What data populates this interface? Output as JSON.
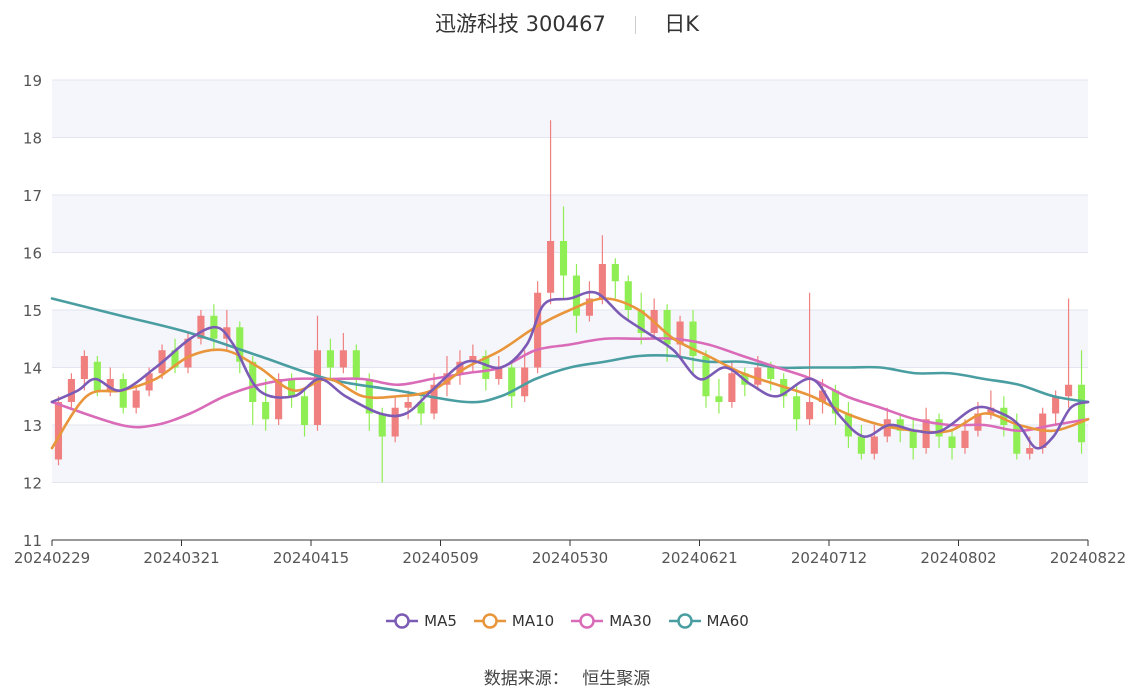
{
  "header": {
    "stock": "迅游科技 300467",
    "period": "日K"
  },
  "footer": {
    "label": "数据来源：",
    "source": "恒生聚源"
  },
  "chart_data": {
    "type": "candlestick",
    "ylim": [
      11,
      19
    ],
    "yticks": [
      11,
      12,
      13,
      14,
      15,
      16,
      17,
      18,
      19
    ],
    "x_tick_labels": [
      "20240229",
      "20240321",
      "20240415",
      "20240509",
      "20240530",
      "20240621",
      "20240712",
      "20240802",
      "20240822"
    ],
    "up_color": "#f08080",
    "down_color": "#90ee55",
    "legend": [
      {
        "name": "MA5",
        "color": "#7b5bb5"
      },
      {
        "name": "MA10",
        "color": "#e8953b"
      },
      {
        "name": "MA30",
        "color": "#d96bb8"
      },
      {
        "name": "MA60",
        "color": "#4a9ea1"
      }
    ],
    "ma": {
      "MA5": [
        [
          0,
          13.4
        ],
        [
          3,
          13.6
        ],
        [
          5,
          13.8
        ],
        [
          8,
          13.6
        ],
        [
          12,
          14.0
        ],
        [
          16,
          14.5
        ],
        [
          19,
          14.7
        ],
        [
          21,
          14.4
        ],
        [
          24,
          13.6
        ],
        [
          28,
          13.5
        ],
        [
          31,
          13.8
        ],
        [
          34,
          13.5
        ],
        [
          38,
          13.2
        ],
        [
          41,
          13.2
        ],
        [
          44,
          13.6
        ],
        [
          48,
          14.1
        ],
        [
          52,
          14.0
        ],
        [
          55,
          14.4
        ],
        [
          57,
          15.1
        ],
        [
          60,
          15.2
        ],
        [
          63,
          15.3
        ],
        [
          66,
          14.9
        ],
        [
          69,
          14.6
        ],
        [
          72,
          14.3
        ],
        [
          75,
          13.8
        ],
        [
          78,
          14.0
        ],
        [
          81,
          13.7
        ],
        [
          84,
          13.5
        ],
        [
          88,
          13.8
        ],
        [
          91,
          13.2
        ],
        [
          94,
          12.8
        ],
        [
          97,
          13.0
        ],
        [
          100,
          12.9
        ],
        [
          103,
          12.9
        ],
        [
          107,
          13.3
        ],
        [
          110,
          13.2
        ],
        [
          112,
          13.0
        ],
        [
          114,
          12.6
        ],
        [
          116,
          12.8
        ],
        [
          118,
          13.3
        ],
        [
          120,
          13.4
        ]
      ],
      "MA10": [
        [
          0,
          12.6
        ],
        [
          4,
          13.5
        ],
        [
          8,
          13.6
        ],
        [
          12,
          13.8
        ],
        [
          16,
          14.2
        ],
        [
          20,
          14.3
        ],
        [
          24,
          14.0
        ],
        [
          28,
          13.6
        ],
        [
          32,
          13.8
        ],
        [
          36,
          13.5
        ],
        [
          40,
          13.5
        ],
        [
          44,
          13.6
        ],
        [
          48,
          14.0
        ],
        [
          52,
          14.3
        ],
        [
          56,
          14.7
        ],
        [
          60,
          15.0
        ],
        [
          64,
          15.2
        ],
        [
          68,
          15.0
        ],
        [
          72,
          14.5
        ],
        [
          76,
          14.2
        ],
        [
          80,
          13.9
        ],
        [
          84,
          13.7
        ],
        [
          88,
          13.5
        ],
        [
          92,
          13.2
        ],
        [
          96,
          13.0
        ],
        [
          100,
          12.9
        ],
        [
          104,
          12.9
        ],
        [
          108,
          13.2
        ],
        [
          112,
          13.0
        ],
        [
          116,
          12.9
        ],
        [
          120,
          13.1
        ]
      ],
      "MA30": [
        [
          0,
          13.4
        ],
        [
          8,
          13.0
        ],
        [
          12,
          13.0
        ],
        [
          16,
          13.2
        ],
        [
          20,
          13.5
        ],
        [
          24,
          13.7
        ],
        [
          28,
          13.8
        ],
        [
          32,
          13.8
        ],
        [
          36,
          13.8
        ],
        [
          40,
          13.7
        ],
        [
          44,
          13.8
        ],
        [
          48,
          13.9
        ],
        [
          52,
          14.0
        ],
        [
          56,
          14.3
        ],
        [
          60,
          14.4
        ],
        [
          64,
          14.5
        ],
        [
          68,
          14.5
        ],
        [
          72,
          14.5
        ],
        [
          76,
          14.4
        ],
        [
          80,
          14.2
        ],
        [
          84,
          14.0
        ],
        [
          88,
          13.8
        ],
        [
          92,
          13.5
        ],
        [
          96,
          13.3
        ],
        [
          100,
          13.1
        ],
        [
          104,
          13.0
        ],
        [
          108,
          13.0
        ],
        [
          112,
          12.9
        ],
        [
          116,
          13.0
        ],
        [
          120,
          13.1
        ]
      ],
      "MA60": [
        [
          0,
          15.2
        ],
        [
          8,
          14.9
        ],
        [
          16,
          14.6
        ],
        [
          24,
          14.2
        ],
        [
          32,
          13.8
        ],
        [
          40,
          13.6
        ],
        [
          48,
          13.4
        ],
        [
          52,
          13.5
        ],
        [
          56,
          13.8
        ],
        [
          60,
          14.0
        ],
        [
          64,
          14.1
        ],
        [
          68,
          14.2
        ],
        [
          72,
          14.2
        ],
        [
          76,
          14.1
        ],
        [
          80,
          14.1
        ],
        [
          84,
          14.0
        ],
        [
          88,
          14.0
        ],
        [
          92,
          14.0
        ],
        [
          96,
          14.0
        ],
        [
          100,
          13.9
        ],
        [
          104,
          13.9
        ],
        [
          108,
          13.8
        ],
        [
          112,
          13.7
        ],
        [
          116,
          13.5
        ],
        [
          120,
          13.4
        ]
      ]
    },
    "candles": [
      [
        12.4,
        13.4,
        12.3,
        13.5
      ],
      [
        13.4,
        13.8,
        13.3,
        13.9
      ],
      [
        13.8,
        14.2,
        13.6,
        14.3
      ],
      [
        14.1,
        13.6,
        13.5,
        14.2
      ],
      [
        13.6,
        13.8,
        13.5,
        14.0
      ],
      [
        13.8,
        13.3,
        13.2,
        13.9
      ],
      [
        13.3,
        13.6,
        13.2,
        13.7
      ],
      [
        13.6,
        13.9,
        13.5,
        14.0
      ],
      [
        13.9,
        14.3,
        13.8,
        14.4
      ],
      [
        14.3,
        14.0,
        13.9,
        14.5
      ],
      [
        14.0,
        14.5,
        13.9,
        14.6
      ],
      [
        14.5,
        14.9,
        14.4,
        15.0
      ],
      [
        14.9,
        14.5,
        14.3,
        15.1
      ],
      [
        14.5,
        14.7,
        14.3,
        15.0
      ],
      [
        14.7,
        14.1,
        13.9,
        14.8
      ],
      [
        14.1,
        13.4,
        13.0,
        14.2
      ],
      [
        13.4,
        13.1,
        12.9,
        13.8
      ],
      [
        13.1,
        13.8,
        13.0,
        13.9
      ],
      [
        13.8,
        13.5,
        13.3,
        13.9
      ],
      [
        13.5,
        13.0,
        12.8,
        13.6
      ],
      [
        13.0,
        14.3,
        12.9,
        14.9
      ],
      [
        14.3,
        14.0,
        13.8,
        14.5
      ],
      [
        14.0,
        14.3,
        13.9,
        14.6
      ],
      [
        14.3,
        13.8,
        13.6,
        14.4
      ],
      [
        13.8,
        13.2,
        12.9,
        13.9
      ],
      [
        13.2,
        12.8,
        12.0,
        13.3
      ],
      [
        12.8,
        13.3,
        12.7,
        13.5
      ],
      [
        13.3,
        13.4,
        13.1,
        13.6
      ],
      [
        13.4,
        13.2,
        13.0,
        13.5
      ],
      [
        13.2,
        13.7,
        13.1,
        13.9
      ],
      [
        13.7,
        13.9,
        13.5,
        14.2
      ],
      [
        13.9,
        14.1,
        13.7,
        14.3
      ],
      [
        14.1,
        14.2,
        13.9,
        14.4
      ],
      [
        14.2,
        13.8,
        13.6,
        14.3
      ],
      [
        13.8,
        14.0,
        13.7,
        14.2
      ],
      [
        14.0,
        13.5,
        13.3,
        14.1
      ],
      [
        13.5,
        14.0,
        13.4,
        14.3
      ],
      [
        14.0,
        15.3,
        13.9,
        15.5
      ],
      [
        15.3,
        16.2,
        15.1,
        18.3
      ],
      [
        16.2,
        15.6,
        15.2,
        16.8
      ],
      [
        15.6,
        14.9,
        14.6,
        15.8
      ],
      [
        14.9,
        15.2,
        14.8,
        15.5
      ],
      [
        15.2,
        15.8,
        15.1,
        16.3
      ],
      [
        15.8,
        15.5,
        15.2,
        15.9
      ],
      [
        15.5,
        15.0,
        14.8,
        15.6
      ],
      [
        15.0,
        14.6,
        14.4,
        15.3
      ],
      [
        14.6,
        15.0,
        14.5,
        15.2
      ],
      [
        15.0,
        14.4,
        14.1,
        15.1
      ],
      [
        14.4,
        14.8,
        14.2,
        14.9
      ],
      [
        14.8,
        14.2,
        13.9,
        15.0
      ],
      [
        14.2,
        13.5,
        13.3,
        14.3
      ],
      [
        13.5,
        13.4,
        13.2,
        13.8
      ],
      [
        13.4,
        13.9,
        13.3,
        14.1
      ],
      [
        13.9,
        13.7,
        13.5,
        14.0
      ],
      [
        13.7,
        14.0,
        13.6,
        14.2
      ],
      [
        14.0,
        13.8,
        13.6,
        14.1
      ],
      [
        13.8,
        13.5,
        13.3,
        13.9
      ],
      [
        13.5,
        13.1,
        12.9,
        13.7
      ],
      [
        13.1,
        13.4,
        13.0,
        15.3
      ],
      [
        13.4,
        13.6,
        13.2,
        13.8
      ],
      [
        13.6,
        13.2,
        13.0,
        13.7
      ],
      [
        13.2,
        12.8,
        12.6,
        13.4
      ],
      [
        12.8,
        12.5,
        12.4,
        13.0
      ],
      [
        12.5,
        12.8,
        12.4,
        13.0
      ],
      [
        12.8,
        13.1,
        12.7,
        13.3
      ],
      [
        13.1,
        12.9,
        12.7,
        13.2
      ],
      [
        12.9,
        12.6,
        12.4,
        13.1
      ],
      [
        12.6,
        13.1,
        12.5,
        13.3
      ],
      [
        13.1,
        12.8,
        12.6,
        13.2
      ],
      [
        12.8,
        12.6,
        12.4,
        12.9
      ],
      [
        12.6,
        12.9,
        12.5,
        13.1
      ],
      [
        12.9,
        13.2,
        12.8,
        13.4
      ],
      [
        13.2,
        13.3,
        13.1,
        13.6
      ],
      [
        13.3,
        13.0,
        12.8,
        13.5
      ],
      [
        13.0,
        12.5,
        12.4,
        13.2
      ],
      [
        12.5,
        12.6,
        12.4,
        12.8
      ],
      [
        12.6,
        13.2,
        12.5,
        13.3
      ],
      [
        13.2,
        13.5,
        13.0,
        13.6
      ],
      [
        13.5,
        13.7,
        13.3,
        15.2
      ],
      [
        13.7,
        12.7,
        12.5,
        14.3
      ]
    ]
  }
}
